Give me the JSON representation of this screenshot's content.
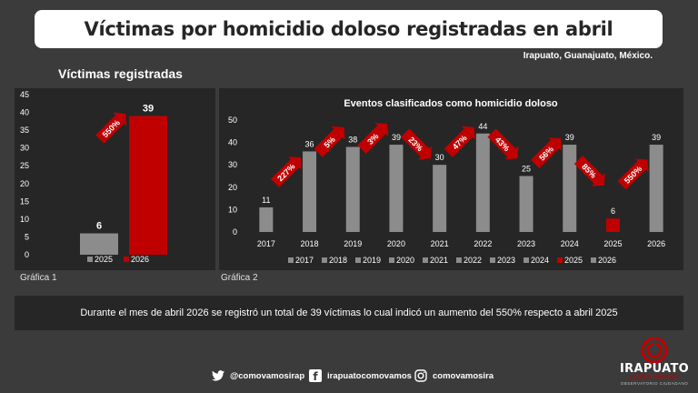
{
  "header": {
    "title": "Víctimas por homicidio doloso registradas en abril",
    "location": "Irapuato, Guanajuato, México."
  },
  "left_title": "Víctimas registradas",
  "captions": {
    "chart1": "Gráfica 1",
    "chart2": "Gráfica 2"
  },
  "summary": "Durante el mes de abril 2026 se registró un total de 39 víctimas lo cual indicó un aumento del 550% respecto a abril 2025",
  "footer": {
    "twitter": "@comovamosirap",
    "facebook": "irapuatocomovamos",
    "instagram": "comovamosira"
  },
  "logo": {
    "brand": "IRAPUATO",
    "line1": "¿CÓMO VAMOS?",
    "line2": "OBSERVATORIO CIUDADANO"
  },
  "colors": {
    "gray": "#8c8c8c",
    "red": "#c00000",
    "panel": "#262626",
    "background": "#3b3b3b"
  },
  "chart_data": [
    {
      "type": "bar",
      "categories": [
        "2025",
        "2026"
      ],
      "values": [
        6,
        39
      ],
      "colors": [
        "#8c8c8c",
        "#c00000"
      ],
      "ylim": [
        0,
        45
      ],
      "yticks": [
        0,
        5,
        10,
        15,
        20,
        25,
        30,
        35,
        40,
        45
      ],
      "legend": [
        "2025",
        "2026"
      ],
      "legend_position": "bottom",
      "annotations": [
        {
          "label": "550%",
          "direction": "up",
          "between": [
            "2025",
            "2026"
          ]
        }
      ]
    },
    {
      "type": "bar",
      "title": "Eventos clasificados como homicidio doloso",
      "categories": [
        "2017",
        "2018",
        "2019",
        "2020",
        "2021",
        "2022",
        "2023",
        "2024",
        "2025",
        "2026"
      ],
      "values": [
        11,
        36,
        38,
        39,
        30,
        44,
        25,
        39,
        6,
        39
      ],
      "colors": [
        "#8c8c8c",
        "#8c8c8c",
        "#8c8c8c",
        "#8c8c8c",
        "#8c8c8c",
        "#8c8c8c",
        "#8c8c8c",
        "#8c8c8c",
        "#c00000",
        "#8c8c8c"
      ],
      "ylim": [
        0,
        50
      ],
      "yticks": [
        0,
        10,
        20,
        30,
        40,
        50
      ],
      "legend": [
        "2017",
        "2018",
        "2019",
        "2020",
        "2021",
        "2022",
        "2023",
        "2024",
        "2025",
        "2026"
      ],
      "legend_position": "bottom",
      "annotations": [
        {
          "label": "227%",
          "direction": "up"
        },
        {
          "label": "5%",
          "direction": "up"
        },
        {
          "label": "3%",
          "direction": "up"
        },
        {
          "label": "23%",
          "direction": "down"
        },
        {
          "label": "47%",
          "direction": "up"
        },
        {
          "label": "43%",
          "direction": "down"
        },
        {
          "label": "56%",
          "direction": "up"
        },
        {
          "label": "85%",
          "direction": "down"
        },
        {
          "label": "550%",
          "direction": "up"
        }
      ]
    }
  ]
}
